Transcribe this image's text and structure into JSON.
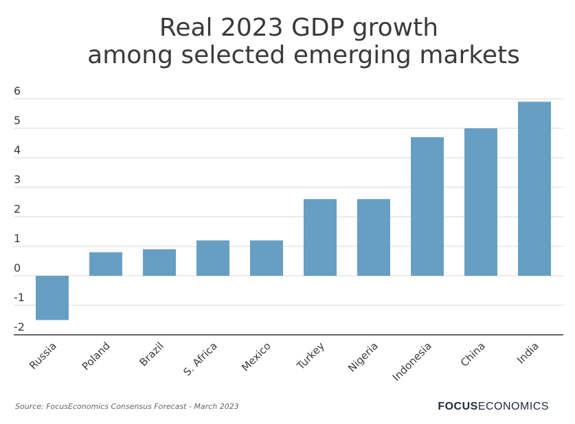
{
  "chart_data": {
    "type": "bar",
    "title_lines": [
      "Real 2023 GDP growth",
      "among selected emerging markets"
    ],
    "categories": [
      "Russia",
      "Poland",
      "Brazil",
      "S. Africa",
      "Mexico",
      "Turkey",
      "Nigeria",
      "Indonesia",
      "China",
      "India"
    ],
    "values": [
      -1.5,
      0.8,
      0.9,
      1.2,
      1.2,
      2.6,
      2.6,
      4.7,
      5.0,
      5.9
    ],
    "ylim": [
      -2,
      6
    ],
    "yticks": [
      -2,
      -1,
      0,
      1,
      2,
      3,
      4,
      5,
      6
    ],
    "xlabel": "",
    "ylabel": "",
    "grid": true,
    "bar_color": "#679fc4"
  },
  "source": "Source:  FocusEconomics Consensus Forecast - March 2023",
  "brand": {
    "bold": "FOCUS",
    "light": "ECONOMICS"
  },
  "colors": {
    "grid": "#d9d9d9",
    "axis": "#333333",
    "text": "#3a3a3a"
  }
}
